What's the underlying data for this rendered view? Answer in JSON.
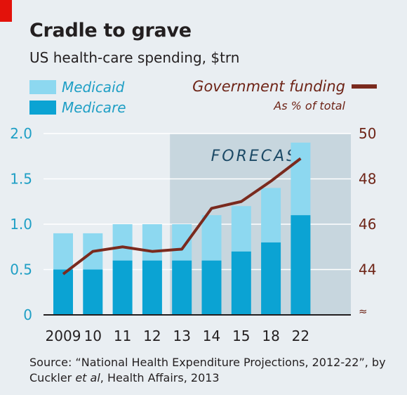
{
  "header": {
    "title": "Cradle to grave",
    "subtitle": "US health-care spending, $trn"
  },
  "legend": {
    "medicaid": "Medicaid",
    "medicare": "Medicare",
    "line_label": "Government funding",
    "line_sub": "As % of total"
  },
  "forecast_label": "FORECAST",
  "source": {
    "text_before": "Source: “National Health Expenditure Projections, 2012-22”, by Cuckler ",
    "et_al": "et al",
    "text_after": ", Health Affairs, 2013"
  },
  "colors": {
    "medicaid": "#8dd8f0",
    "medicare": "#0ba3d3",
    "line": "#7a2a1e",
    "forecast_bg": "#c7d6de",
    "left_axis": "#1f9fc5",
    "right_axis": "#6e2417",
    "brand_red": "#e3120b"
  },
  "chart_data": {
    "type": "bar",
    "categories": [
      "2009",
      "10",
      "11",
      "12",
      "13",
      "14",
      "15",
      "18",
      "22"
    ],
    "series": [
      {
        "name": "Medicare",
        "values": [
          0.5,
          0.5,
          0.6,
          0.6,
          0.6,
          0.6,
          0.7,
          0.8,
          1.1
        ]
      },
      {
        "name": "Medicaid",
        "values": [
          0.4,
          0.4,
          0.4,
          0.4,
          0.4,
          0.5,
          0.5,
          0.6,
          0.8
        ]
      },
      {
        "name": "Government funding",
        "type": "line",
        "axis": "right",
        "values": [
          43.8,
          44.8,
          45.0,
          44.8,
          44.9,
          46.7,
          47.0,
          47.9,
          48.9
        ]
      }
    ],
    "stacked": true,
    "ylim": [
      0,
      2.0
    ],
    "yticks": [
      "0",
      "0.5",
      "1.0",
      "1.5",
      "2.0"
    ],
    "y2_ticks": [
      "44",
      "46",
      "48",
      "50"
    ],
    "y2_range": [
      42,
      50
    ],
    "forecast_start_category": "13",
    "xlabel": "",
    "ylabel": ""
  }
}
